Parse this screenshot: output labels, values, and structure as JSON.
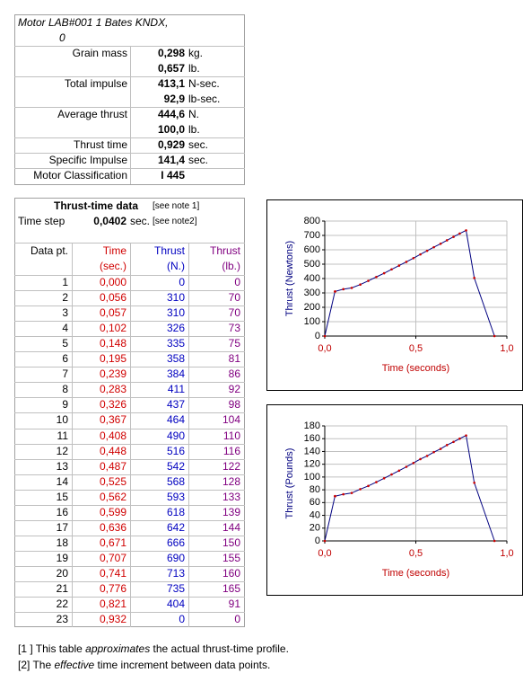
{
  "motor": {
    "title_line1": "Motor LAB#001  1 Bates KNDX,",
    "title_line2": "0",
    "properties": [
      {
        "label": "Grain mass",
        "entries": [
          {
            "value": "0,298",
            "unit": "kg."
          },
          {
            "value": "0,657",
            "unit": "lb."
          }
        ]
      },
      {
        "label": "Total impulse",
        "entries": [
          {
            "value": "413,1",
            "unit": "N-sec."
          },
          {
            "value": "92,9",
            "unit": "lb-sec."
          }
        ]
      },
      {
        "label": "Average thrust",
        "entries": [
          {
            "value": "444,6",
            "unit": "N."
          },
          {
            "value": "100,0",
            "unit": "lb."
          }
        ]
      },
      {
        "label": "Thrust time",
        "entries": [
          {
            "value": "0,929",
            "unit": "sec."
          }
        ]
      },
      {
        "label": "Specific Impulse",
        "entries": [
          {
            "value": "141,4",
            "unit": "sec."
          }
        ]
      },
      {
        "label": "Motor Classification",
        "entries": [
          {
            "value": "I 445"
          }
        ]
      }
    ]
  },
  "thrust_table": {
    "title": "Thrust-time data",
    "title_note": "[see note 1]",
    "time_step_label": "Time step",
    "time_step_value": "0,0402",
    "time_step_unit": "sec.",
    "time_step_note": "[see note2]",
    "headers": [
      [
        "Data pt."
      ],
      [
        "Time",
        "(sec.)"
      ],
      [
        "Thrust",
        "(N.)"
      ],
      [
        "Thrust",
        "(lb.)"
      ]
    ],
    "rows": [
      [
        "1",
        "0,000",
        "0",
        "0"
      ],
      [
        "2",
        "0,056",
        "310",
        "70"
      ],
      [
        "3",
        "0,057",
        "310",
        "70"
      ],
      [
        "4",
        "0,102",
        "326",
        "73"
      ],
      [
        "5",
        "0,148",
        "335",
        "75"
      ],
      [
        "6",
        "0,195",
        "358",
        "81"
      ],
      [
        "7",
        "0,239",
        "384",
        "86"
      ],
      [
        "8",
        "0,283",
        "411",
        "92"
      ],
      [
        "9",
        "0,326",
        "437",
        "98"
      ],
      [
        "10",
        "0,367",
        "464",
        "104"
      ],
      [
        "11",
        "0,408",
        "490",
        "110"
      ],
      [
        "12",
        "0,448",
        "516",
        "116"
      ],
      [
        "13",
        "0,487",
        "542",
        "122"
      ],
      [
        "14",
        "0,525",
        "568",
        "128"
      ],
      [
        "15",
        "0,562",
        "593",
        "133"
      ],
      [
        "16",
        "0,599",
        "618",
        "139"
      ],
      [
        "17",
        "0,636",
        "642",
        "144"
      ],
      [
        "18",
        "0,671",
        "666",
        "150"
      ],
      [
        "19",
        "0,707",
        "690",
        "155"
      ],
      [
        "20",
        "0,741",
        "713",
        "160"
      ],
      [
        "21",
        "0,776",
        "735",
        "165"
      ],
      [
        "22",
        "0,821",
        "404",
        "91"
      ],
      [
        "23",
        "0,932",
        "0",
        "0"
      ]
    ]
  },
  "chart_data": [
    {
      "type": "line",
      "x_label": "Time  (seconds)",
      "y_label": "Thrust  (Newtons)",
      "x": [
        0,
        0.056,
        0.057,
        0.102,
        0.148,
        0.195,
        0.239,
        0.283,
        0.326,
        0.367,
        0.408,
        0.448,
        0.487,
        0.525,
        0.562,
        0.599,
        0.636,
        0.671,
        0.707,
        0.741,
        0.776,
        0.821,
        0.932
      ],
      "series": [
        {
          "color": "#000080",
          "marker_color": "#cc0000",
          "values": [
            0,
            310,
            310,
            326,
            335,
            358,
            384,
            411,
            437,
            464,
            490,
            516,
            542,
            568,
            593,
            618,
            642,
            666,
            690,
            713,
            735,
            404,
            0
          ]
        }
      ],
      "xlim": [
        0,
        1
      ],
      "xticks": [
        {
          "value": 0,
          "label": "0,0"
        },
        {
          "value": 0.5,
          "label": "0,5"
        },
        {
          "value": 1,
          "label": "1,0"
        }
      ],
      "ylim": [
        0,
        800
      ],
      "yticks": [
        0,
        100,
        200,
        300,
        400,
        500,
        600,
        700,
        800
      ],
      "grid": true
    },
    {
      "type": "line",
      "x_label": "Time  (seconds)",
      "y_label": "Thrust  (Pounds)",
      "x": [
        0,
        0.056,
        0.057,
        0.102,
        0.148,
        0.195,
        0.239,
        0.283,
        0.326,
        0.367,
        0.408,
        0.448,
        0.487,
        0.525,
        0.562,
        0.599,
        0.636,
        0.671,
        0.707,
        0.741,
        0.776,
        0.821,
        0.932
      ],
      "series": [
        {
          "color": "#000080",
          "marker_color": "#cc0000",
          "values": [
            0,
            70,
            70,
            73,
            75,
            81,
            86,
            92,
            98,
            104,
            110,
            116,
            122,
            128,
            133,
            139,
            144,
            150,
            155,
            160,
            165,
            91,
            0
          ]
        }
      ],
      "xlim": [
        0,
        1
      ],
      "xticks": [
        {
          "value": 0,
          "label": "0,0"
        },
        {
          "value": 0.5,
          "label": "0,5"
        },
        {
          "value": 1,
          "label": "1,0"
        }
      ],
      "ylim": [
        0,
        180
      ],
      "yticks": [
        0,
        20,
        40,
        60,
        80,
        100,
        120,
        140,
        160,
        180
      ],
      "grid": true
    }
  ],
  "notes": [
    {
      "prefix": "[1 ] This table ",
      "emphasis": "approximates",
      "suffix": " the actual thrust-time profile."
    },
    {
      "prefix": "[2]  The ",
      "emphasis": "effective",
      "suffix": " time increment between data points."
    }
  ]
}
